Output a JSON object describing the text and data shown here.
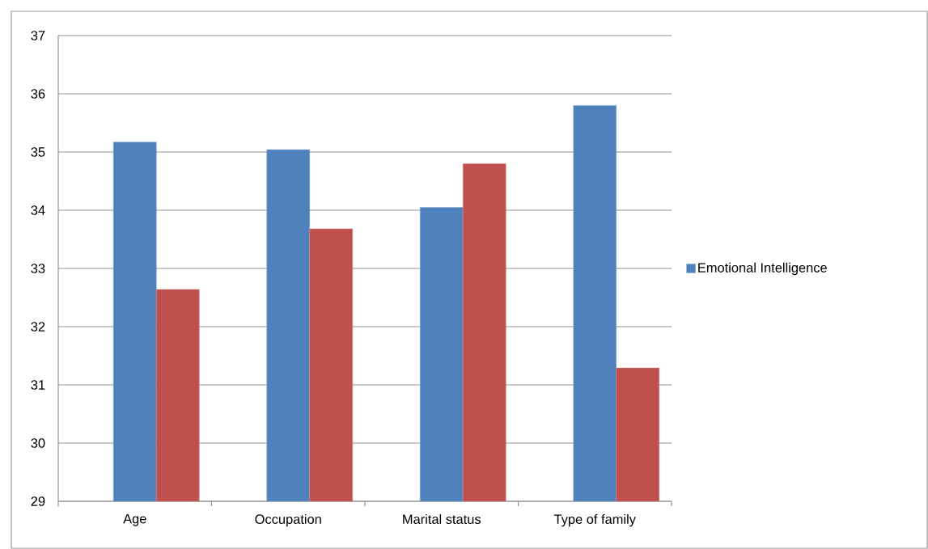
{
  "chart_data": {
    "type": "bar",
    "categories": [
      "Age",
      "Occupation",
      "Marital status",
      "Type of family"
    ],
    "series": [
      {
        "name": "Emotional Intelligence",
        "color": "#4f81bd",
        "values": [
          35.17,
          35.04,
          34.05,
          35.8
        ]
      },
      {
        "color": "#c0504d",
        "values": [
          32.64,
          33.68,
          34.8,
          31.29
        ]
      }
    ],
    "ylim": [
      29,
      37
    ],
    "yticks": [
      29,
      30,
      31,
      32,
      33,
      34,
      35,
      36,
      37
    ],
    "grid": "y",
    "legend": "right"
  }
}
